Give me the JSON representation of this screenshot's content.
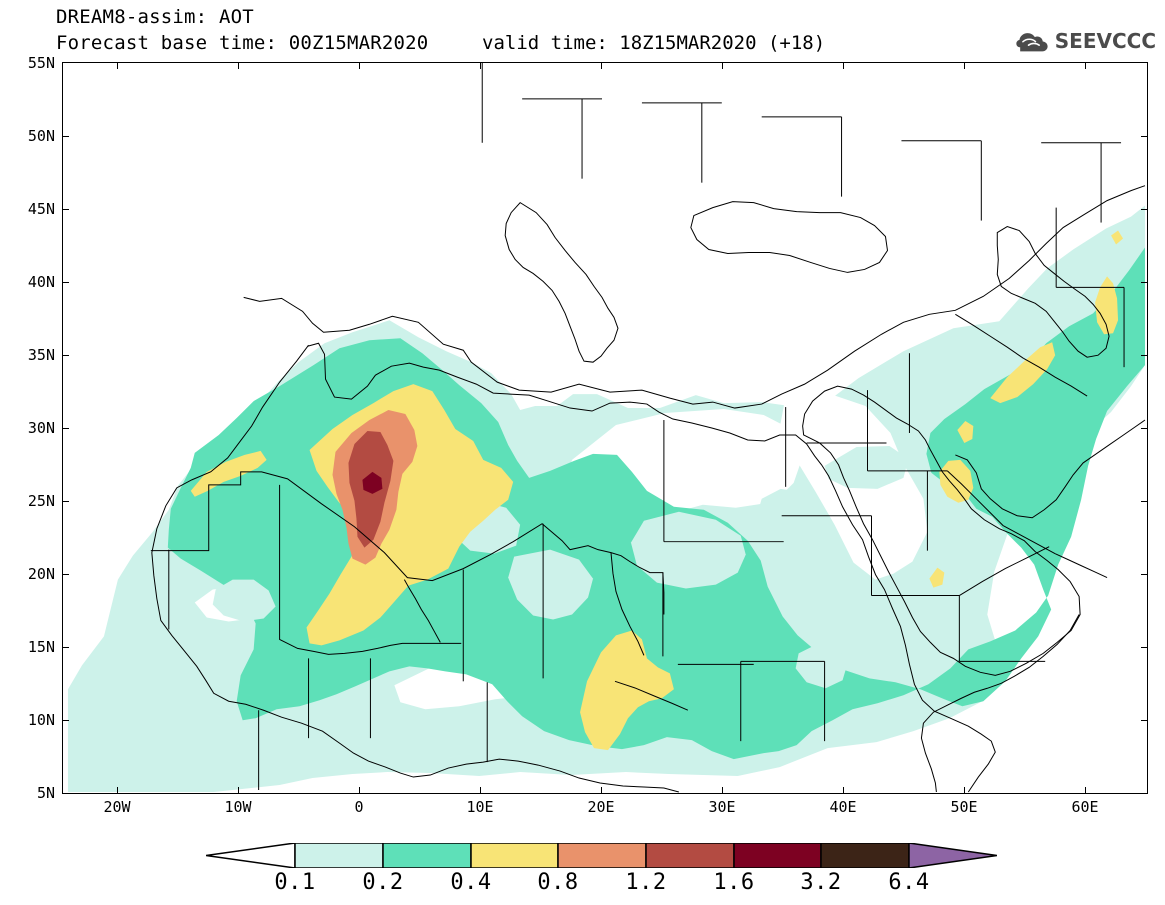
{
  "title": {
    "line1": "DREAM8-assim: AOT",
    "line2": "Forecast base time: 00Z15MAR2020",
    "valid": "valid time: 18Z15MAR2020 (+18)"
  },
  "logo": {
    "text": "SEEVCCC",
    "icon": "cloud-icon"
  },
  "axes": {
    "lat_labels": [
      "55N",
      "50N",
      "45N",
      "40N",
      "35N",
      "30N",
      "25N",
      "20N",
      "15N",
      "10N",
      "5N"
    ],
    "lon_labels": [
      "20W",
      "10W",
      "0",
      "10E",
      "20E",
      "30E",
      "40E",
      "50E",
      "60E"
    ],
    "lat_range": [
      5,
      55
    ],
    "lon_range": [
      -25,
      65
    ]
  },
  "legend": {
    "levels": [
      "0.1",
      "0.2",
      "0.4",
      "0.8",
      "1.2",
      "1.6",
      "3.2",
      "6.4"
    ],
    "colors": {
      "0.1": "#cdf2ea",
      "0.2": "#5ee0b8",
      "0.4": "#f8e476",
      "0.8": "#e9926b",
      "1.2": "#b34b42",
      "1.6": "#7d0122",
      "3.2": "#3c2417",
      "6.4": "#8d64a4"
    },
    "below_color": "#ffffff"
  }
}
